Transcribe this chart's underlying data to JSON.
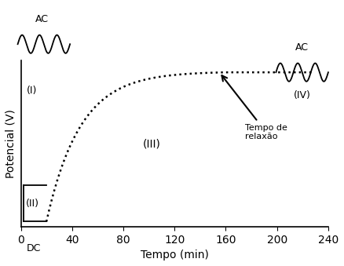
{
  "xlabel": "Tempo (min)",
  "ylabel": "Potencial (V)",
  "xlim": [
    0,
    240
  ],
  "ylim": [
    0,
    1
  ],
  "xticks": [
    0,
    40,
    80,
    120,
    160,
    200,
    240
  ],
  "background_color": "#ffffff",
  "curve_color": "#000000",
  "label_I": "(I)",
  "label_II": "(II)",
  "label_III": "(III)",
  "label_IV": "(IV)",
  "label_DC": "DC",
  "label_AC_left": "AC",
  "label_AC_right": "AC",
  "label_relaxation": "Tempo de\nrelaxão",
  "font_size_labels": 9,
  "font_size_axis_labels": 10
}
